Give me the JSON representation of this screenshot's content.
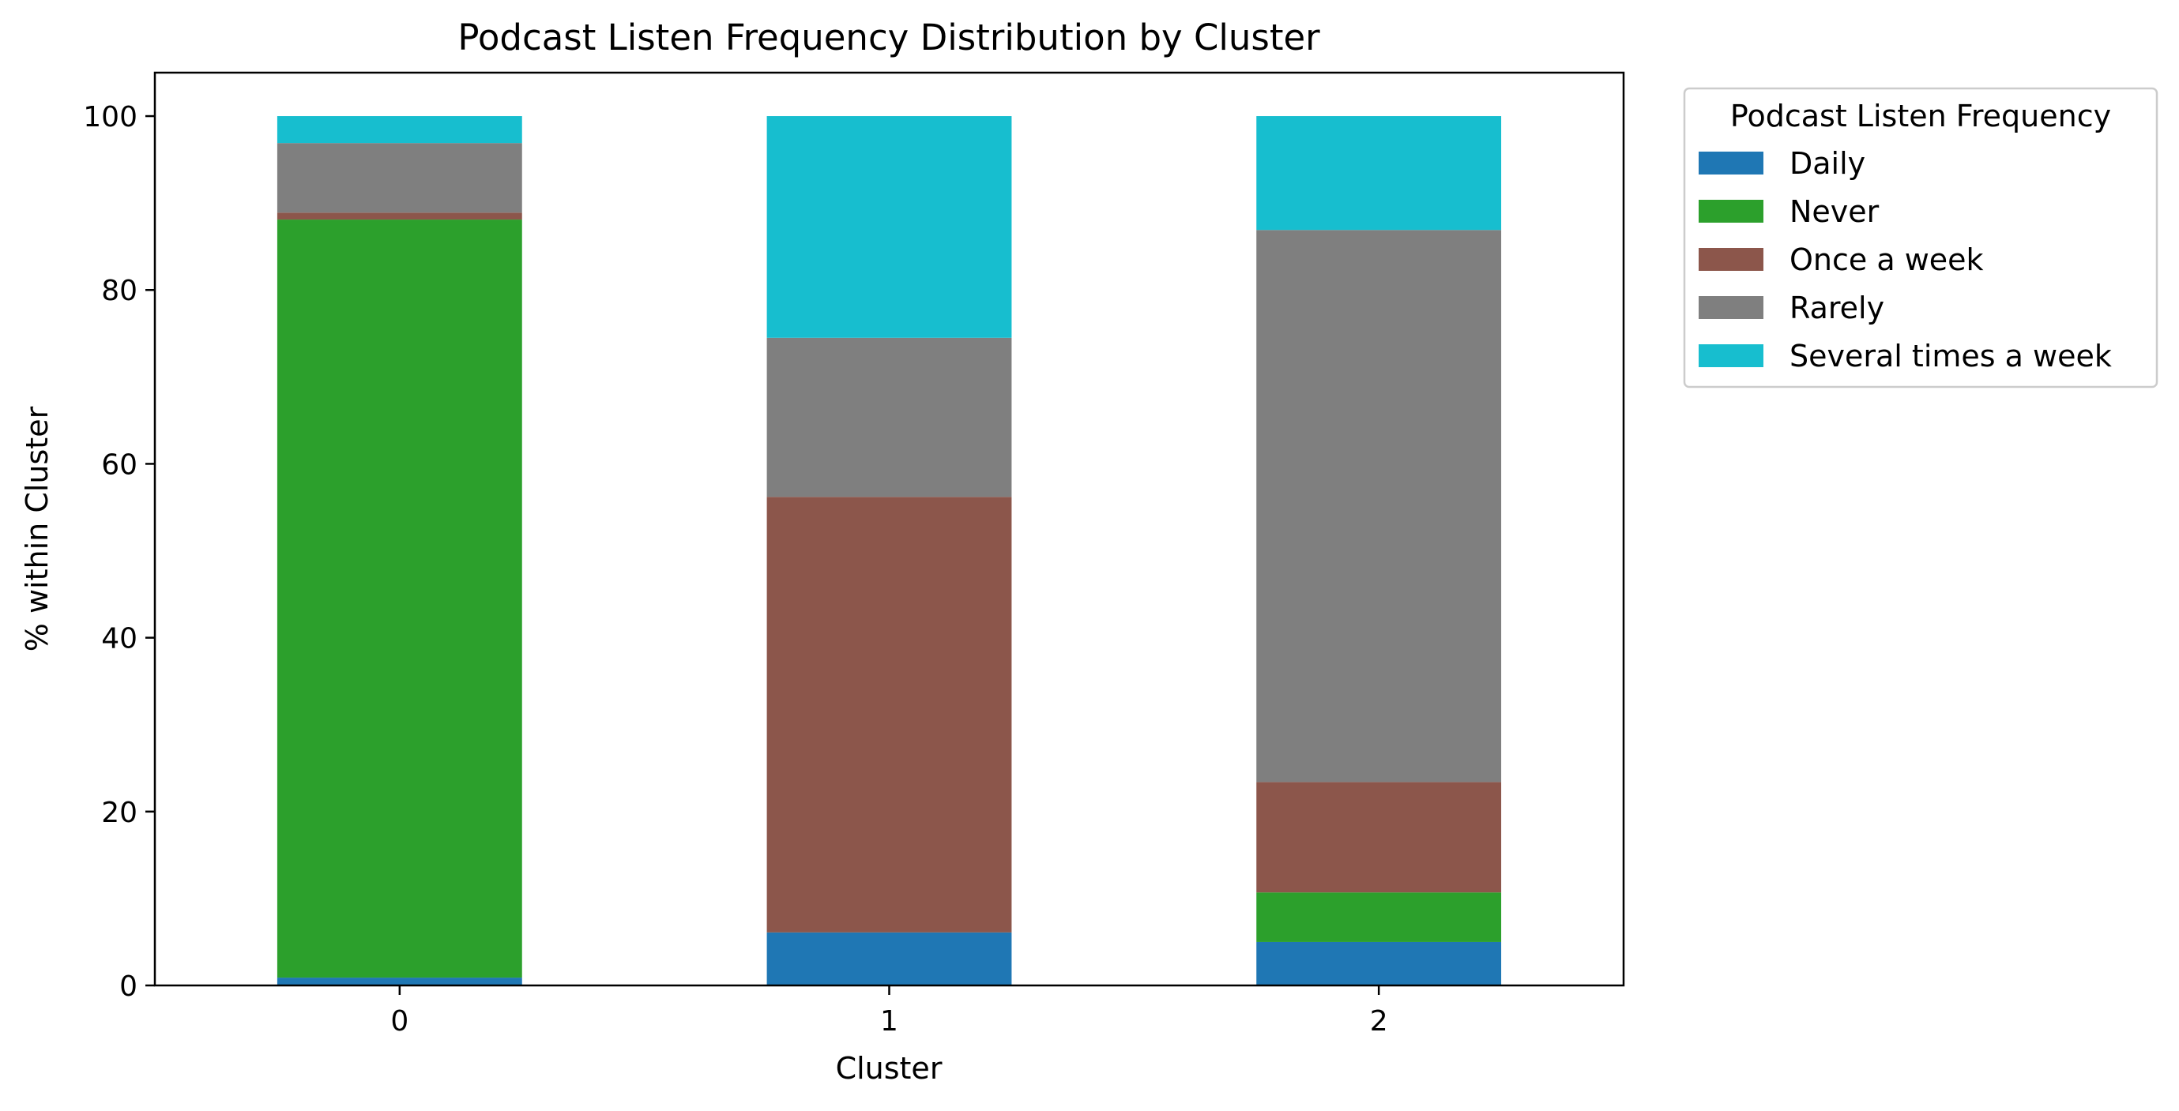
{
  "chart_data": {
    "type": "bar",
    "stacked": true,
    "title": "Podcast Listen Frequency Distribution by Cluster",
    "xlabel": "Cluster",
    "ylabel": "% within Cluster",
    "categories": [
      "0",
      "1",
      "2"
    ],
    "ylim": [
      0,
      105
    ],
    "yticks": [
      0,
      20,
      40,
      60,
      80,
      100
    ],
    "grid": false,
    "legend": {
      "title": "Podcast Listen Frequency",
      "placement": "outside-top-right"
    },
    "series": [
      {
        "name": "Daily",
        "color": "#1f77b4",
        "values": [
          0.9,
          6.1,
          5.0
        ]
      },
      {
        "name": "Never",
        "color": "#2ca02c",
        "values": [
          87.2,
          0.0,
          5.7
        ]
      },
      {
        "name": "Once a week",
        "color": "#8c564b",
        "values": [
          0.8,
          50.1,
          12.7
        ]
      },
      {
        "name": "Rarely",
        "color": "#7f7f7f",
        "values": [
          8.0,
          18.3,
          63.5
        ]
      },
      {
        "name": "Several times a week",
        "color": "#17becf",
        "values": [
          3.1,
          25.5,
          13.1
        ]
      }
    ]
  }
}
